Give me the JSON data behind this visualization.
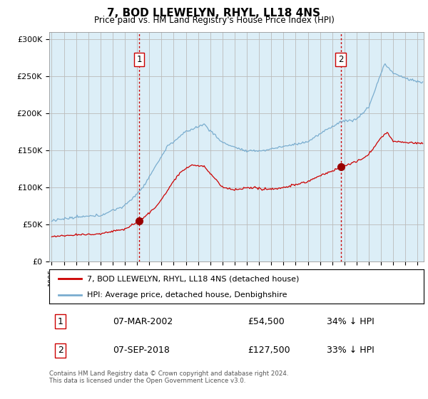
{
  "title": "7, BOD LLEWELYN, RHYL, LL18 4NS",
  "subtitle": "Price paid vs. HM Land Registry's House Price Index (HPI)",
  "footer": "Contains HM Land Registry data © Crown copyright and database right 2024.\nThis data is licensed under the Open Government Licence v3.0.",
  "legend_entries": [
    "7, BOD LLEWELYN, RHYL, LL18 4NS (detached house)",
    "HPI: Average price, detached house, Denbighshire"
  ],
  "table_rows": [
    {
      "num": "1",
      "date": "07-MAR-2002",
      "price": "£54,500",
      "pct": "34% ↓ HPI"
    },
    {
      "num": "2",
      "date": "07-SEP-2018",
      "price": "£127,500",
      "pct": "33% ↓ HPI"
    }
  ],
  "sale_line_color": "#cc0000",
  "hpi_line_color": "#7aadcf",
  "hpi_fill_color": "#dceef7",
  "sale_marker_color": "#990000",
  "vline_color": "#cc0000",
  "bg_color": "#ffffff",
  "plot_bg_color": "#ffffff",
  "grid_color": "#cccccc",
  "sale1_x": 2002.19,
  "sale1_y": 54500,
  "sale2_x": 2018.69,
  "sale2_y": 127500,
  "ylim": [
    0,
    310000
  ],
  "xlim_start": 1994.8,
  "xlim_end": 2025.5
}
